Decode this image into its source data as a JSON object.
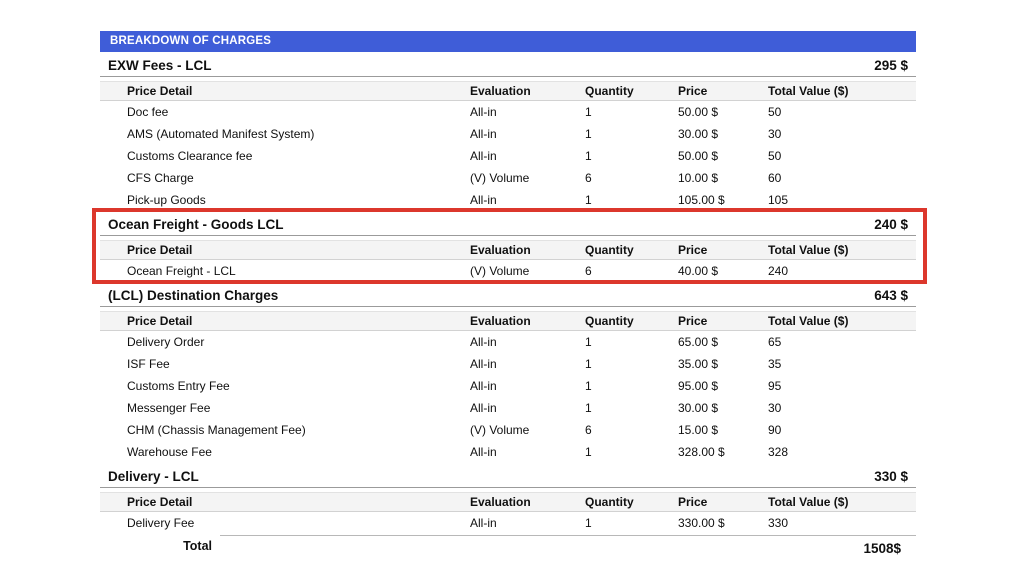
{
  "header": {
    "title": "BREAKDOWN OF CHARGES"
  },
  "columns": {
    "price_detail": "Price Detail",
    "evaluation": "Evaluation",
    "quantity": "Quantity",
    "price": "Price",
    "total_value": "Total Value ($)"
  },
  "sections": [
    {
      "title": "EXW Fees - LCL",
      "amount": "295 $",
      "highlighted": false,
      "rows": [
        {
          "price_detail": "Doc fee",
          "evaluation": "All-in",
          "quantity": "1",
          "price": "50.00 $",
          "total_value": "50"
        },
        {
          "price_detail": "AMS (Automated Manifest System)",
          "evaluation": "All-in",
          "quantity": "1",
          "price": "30.00 $",
          "total_value": "30"
        },
        {
          "price_detail": "Customs Clearance fee",
          "evaluation": "All-in",
          "quantity": "1",
          "price": "50.00 $",
          "total_value": "50"
        },
        {
          "price_detail": "CFS Charge",
          "evaluation": "(V) Volume",
          "quantity": "6",
          "price": "10.00 $",
          "total_value": "60"
        },
        {
          "price_detail": "Pick-up Goods",
          "evaluation": "All-in",
          "quantity": "1",
          "price": "105.00 $",
          "total_value": "105"
        }
      ]
    },
    {
      "title": "Ocean Freight - Goods LCL",
      "amount": "240 $",
      "highlighted": true,
      "rows": [
        {
          "price_detail": "Ocean Freight - LCL",
          "evaluation": "(V) Volume",
          "quantity": "6",
          "price": "40.00 $",
          "total_value": "240"
        }
      ]
    },
    {
      "title": "(LCL) Destination Charges",
      "amount": "643 $",
      "highlighted": false,
      "rows": [
        {
          "price_detail": "Delivery Order",
          "evaluation": "All-in",
          "quantity": "1",
          "price": "65.00 $",
          "total_value": "65"
        },
        {
          "price_detail": "ISF Fee",
          "evaluation": "All-in",
          "quantity": "1",
          "price": "35.00 $",
          "total_value": "35"
        },
        {
          "price_detail": "Customs Entry Fee",
          "evaluation": "All-in",
          "quantity": "1",
          "price": "95.00 $",
          "total_value": "95"
        },
        {
          "price_detail": "Messenger Fee",
          "evaluation": "All-in",
          "quantity": "1",
          "price": "30.00 $",
          "total_value": "30"
        },
        {
          "price_detail": "CHM (Chassis Management Fee)",
          "evaluation": "(V) Volume",
          "quantity": "6",
          "price": "15.00 $",
          "total_value": "90"
        },
        {
          "price_detail": "Warehouse Fee",
          "evaluation": "All-in",
          "quantity": "1",
          "price": "328.00 $",
          "total_value": "328"
        }
      ]
    },
    {
      "title": "Delivery - LCL",
      "amount": "330 $",
      "highlighted": false,
      "rows": [
        {
          "price_detail": "Delivery Fee",
          "evaluation": "All-in",
          "quantity": "1",
          "price": "330.00 $",
          "total_value": "330"
        }
      ]
    }
  ],
  "total": {
    "label": "Total",
    "amount": "1508$"
  },
  "colors": {
    "accent_blue": "#3f5dd8",
    "highlight_red": "#dc372c",
    "header_row_bg": "#f4f4f4"
  }
}
